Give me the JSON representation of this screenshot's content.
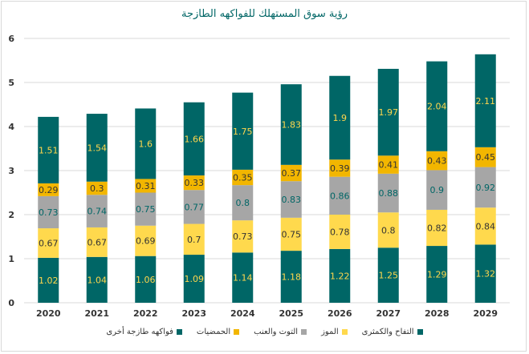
{
  "chart_data": {
    "type": "bar",
    "stacked": true,
    "title": "رؤية سوق المستهلك للفواكهه الطازجة",
    "categories": [
      "2020",
      "2021",
      "2022",
      "2023",
      "2024",
      "2025",
      "2026",
      "2027",
      "2028",
      "2029"
    ],
    "ylim": [
      0,
      6
    ],
    "yticks": [
      "0",
      "1",
      "2",
      "3",
      "4",
      "5",
      "6"
    ],
    "grid": true,
    "legend_position": "bottom",
    "series": [
      {
        "name": "التفاح والكمثرى",
        "color": "#006666",
        "label_color": "#ffd74d",
        "values": [
          1.02,
          1.04,
          1.06,
          1.09,
          1.14,
          1.18,
          1.22,
          1.25,
          1.29,
          1.32
        ]
      },
      {
        "name": "الموز",
        "color": "#ffd94d",
        "label_color": "#333333",
        "values": [
          0.67,
          0.67,
          0.69,
          0.7,
          0.73,
          0.75,
          0.78,
          0.8,
          0.82,
          0.84
        ]
      },
      {
        "name": "التوت والعنب",
        "color": "#a6a6a6",
        "label_color": "#006666",
        "values": [
          0.73,
          0.74,
          0.75,
          0.77,
          0.8,
          0.83,
          0.86,
          0.88,
          0.9,
          0.92
        ]
      },
      {
        "name": "الحمضيات",
        "color": "#f2b600",
        "label_color": "#333333",
        "values": [
          0.29,
          0.3,
          0.31,
          0.33,
          0.35,
          0.37,
          0.39,
          0.41,
          0.43,
          0.45
        ]
      },
      {
        "name": "فواكهه طازجة أخرى",
        "color": "#006666",
        "label_color": "#ffd74d",
        "values": [
          1.51,
          1.54,
          1.6,
          1.66,
          1.75,
          1.83,
          1.9,
          1.97,
          2.04,
          2.11
        ]
      }
    ]
  }
}
